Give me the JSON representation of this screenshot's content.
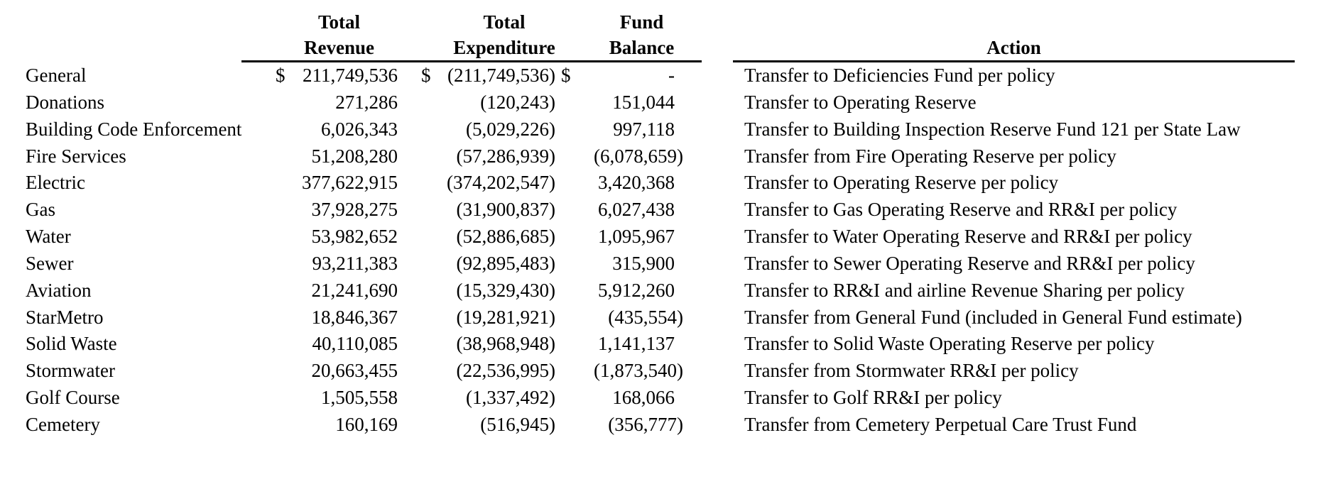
{
  "table": {
    "colors": {
      "background": "#ffffff",
      "text": "#000000",
      "rule": "#000000"
    },
    "currency_symbol": "$",
    "headers": {
      "name": "",
      "revenue": [
        "Total",
        "Revenue"
      ],
      "expenditure": [
        "Total",
        "Expenditure"
      ],
      "balance": [
        "Fund",
        "Balance"
      ],
      "action": "Action"
    },
    "rows": [
      {
        "name": "General",
        "revenue_dollar": "$",
        "revenue": "211,749,536",
        "expenditure_dollar": "$",
        "expenditure": "(211,749,536)",
        "balance_dollar": "$",
        "balance": "-",
        "action": "Transfer to Deficiencies Fund per policy"
      },
      {
        "name": "Donations",
        "revenue_dollar": "",
        "revenue": "271,286",
        "expenditure_dollar": "",
        "expenditure": "(120,243)",
        "balance_dollar": "",
        "balance": "151,044",
        "action": "Transfer to Operating Reserve"
      },
      {
        "name": "Building Code Enforcement",
        "revenue_dollar": "",
        "revenue": "6,026,343",
        "expenditure_dollar": "",
        "expenditure": "(5,029,226)",
        "balance_dollar": "",
        "balance": "997,118",
        "action": "Transfer to Building Inspection Reserve Fund 121 per State Law"
      },
      {
        "name": "Fire Services",
        "revenue_dollar": "",
        "revenue": "51,208,280",
        "expenditure_dollar": "",
        "expenditure": "(57,286,939)",
        "balance_dollar": "",
        "balance": "(6,078,659)",
        "action": "Transfer from Fire Operating Reserve per policy"
      },
      {
        "name": "Electric",
        "revenue_dollar": "",
        "revenue": "377,622,915",
        "expenditure_dollar": "",
        "expenditure": "(374,202,547)",
        "balance_dollar": "",
        "balance": "3,420,368",
        "action": "Transfer to Operating Reserve per policy"
      },
      {
        "name": "Gas",
        "revenue_dollar": "",
        "revenue": "37,928,275",
        "expenditure_dollar": "",
        "expenditure": "(31,900,837)",
        "balance_dollar": "",
        "balance": "6,027,438",
        "action": "Transfer to Gas Operating Reserve and RR&I per policy"
      },
      {
        "name": "Water",
        "revenue_dollar": "",
        "revenue": "53,982,652",
        "expenditure_dollar": "",
        "expenditure": "(52,886,685)",
        "balance_dollar": "",
        "balance": "1,095,967",
        "action": "Transfer to Water Operating Reserve and RR&I per policy"
      },
      {
        "name": "Sewer",
        "revenue_dollar": "",
        "revenue": "93,211,383",
        "expenditure_dollar": "",
        "expenditure": "(92,895,483)",
        "balance_dollar": "",
        "balance": "315,900",
        "action": "Transfer to Sewer Operating Reserve and RR&I per policy"
      },
      {
        "name": "Aviation",
        "revenue_dollar": "",
        "revenue": "21,241,690",
        "expenditure_dollar": "",
        "expenditure": "(15,329,430)",
        "balance_dollar": "",
        "balance": "5,912,260",
        "action": "Transfer to RR&I and airline Revenue Sharing per policy"
      },
      {
        "name": "StarMetro",
        "revenue_dollar": "",
        "revenue": "18,846,367",
        "expenditure_dollar": "",
        "expenditure": "(19,281,921)",
        "balance_dollar": "",
        "balance": "(435,554)",
        "action": "Transfer from General Fund (included in General Fund estimate)"
      },
      {
        "name": "Solid Waste",
        "revenue_dollar": "",
        "revenue": "40,110,085",
        "expenditure_dollar": "",
        "expenditure": "(38,968,948)",
        "balance_dollar": "",
        "balance": "1,141,137",
        "action": "Transfer to Solid Waste Operating Reserve per policy"
      },
      {
        "name": "Stormwater",
        "revenue_dollar": "",
        "revenue": "20,663,455",
        "expenditure_dollar": "",
        "expenditure": "(22,536,995)",
        "balance_dollar": "",
        "balance": "(1,873,540)",
        "action": "Transfer from Stormwater RR&I per policy"
      },
      {
        "name": "Golf Course",
        "revenue_dollar": "",
        "revenue": "1,505,558",
        "expenditure_dollar": "",
        "expenditure": "(1,337,492)",
        "balance_dollar": "",
        "balance": "168,066",
        "action": "Transfer to Golf RR&I per policy"
      },
      {
        "name": "Cemetery",
        "revenue_dollar": "",
        "revenue": "160,169",
        "expenditure_dollar": "",
        "expenditure": "(516,945)",
        "balance_dollar": "",
        "balance": "(356,777)",
        "action": "Transfer from Cemetery Perpetual Care Trust Fund"
      }
    ]
  }
}
